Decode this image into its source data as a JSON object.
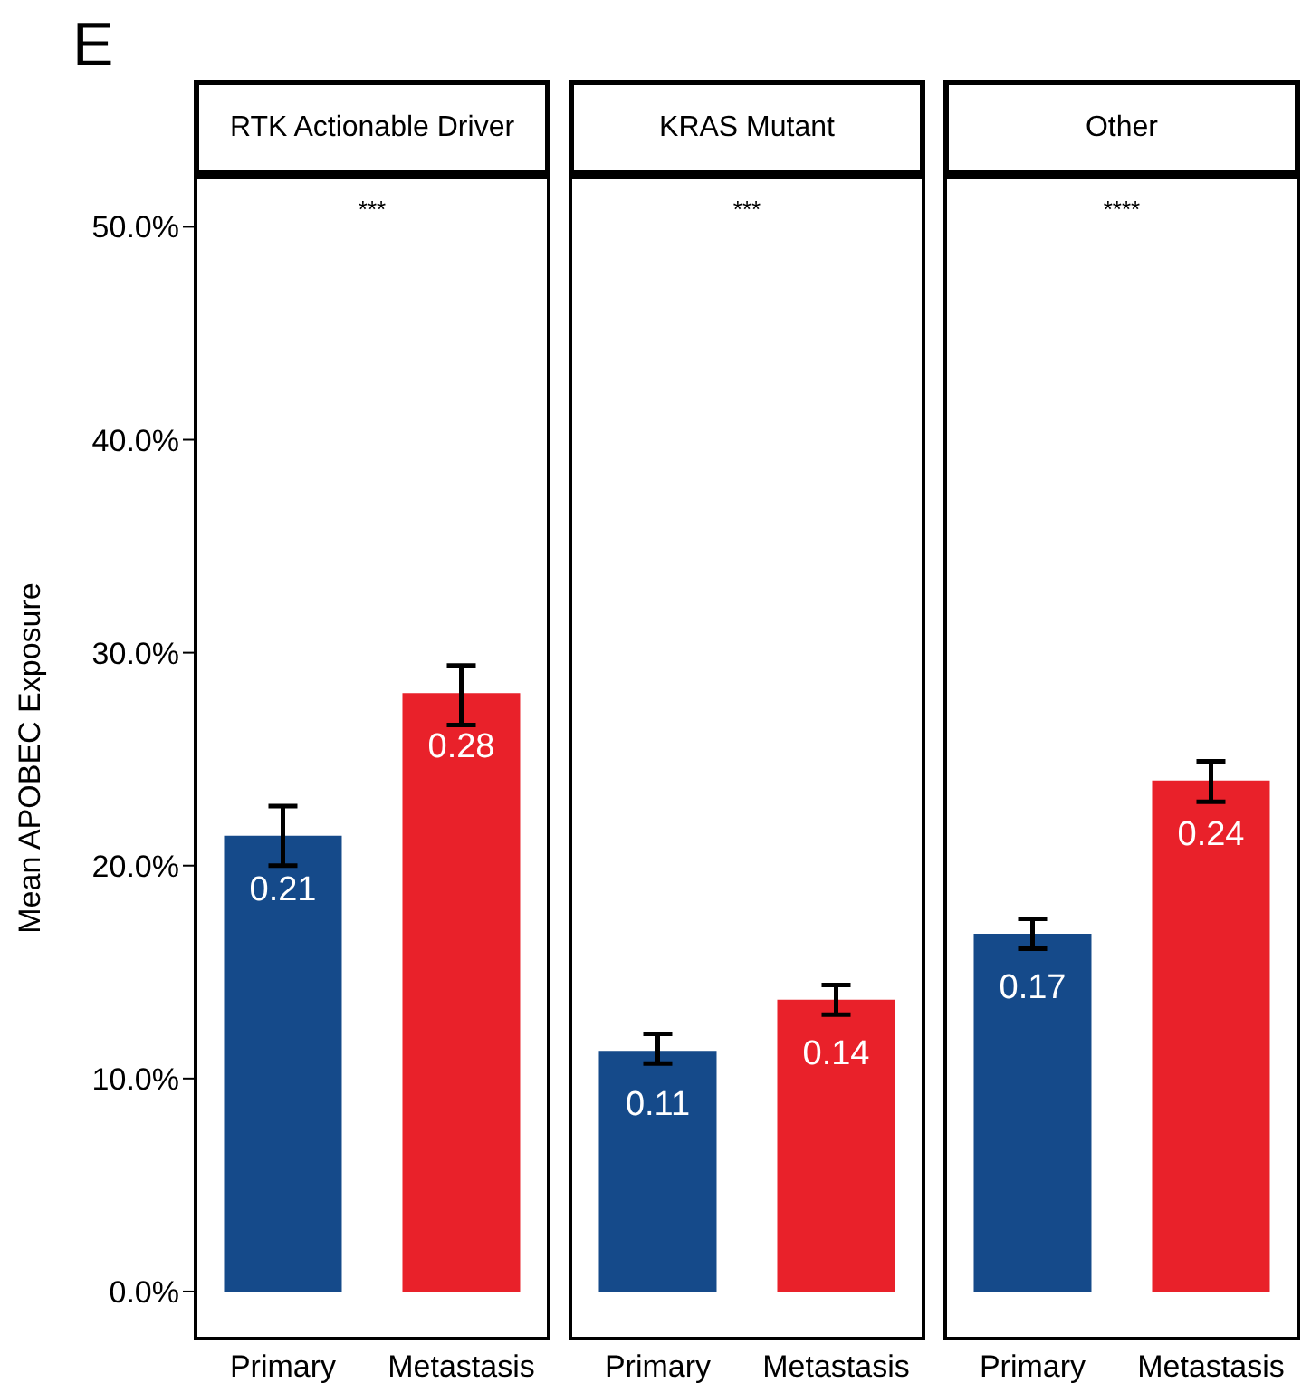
{
  "chart_data": [
    {
      "type": "bar",
      "title": "RTK Actionable Driver",
      "ylabel": "Mean APOBEC Exposure",
      "categories": [
        "Primary",
        "Metastasis"
      ],
      "values": [
        0.214,
        0.281
      ],
      "colors": [
        "#154a8a",
        "#e9212a"
      ],
      "errors": [
        [
          0.2,
          0.228
        ],
        [
          0.266,
          0.294
        ]
      ],
      "value_labels": [
        "0.21",
        "0.28"
      ],
      "annotations": [
        "E",
        "***"
      ],
      "ylim": [
        -0.023,
        0.524
      ],
      "yticks": [
        {
          "value": 0,
          "label": "0.0%"
        },
        {
          "value": 0.1,
          "label": "10.0%"
        },
        {
          "value": 0.2,
          "label": "20.0%"
        },
        {
          "value": 0.3,
          "label": "30.0%"
        },
        {
          "value": 0.4,
          "label": "40.0%"
        },
        {
          "value": 0.5,
          "label": "50.0%"
        }
      ]
    },
    {
      "type": "bar",
      "title": "KRAS Mutant",
      "categories": [
        "Primary",
        "Metastasis"
      ],
      "values": [
        0.113,
        0.137
      ],
      "colors": [
        "#154a8a",
        "#e9212a"
      ],
      "errors": [
        [
          0.107,
          0.121
        ],
        [
          0.13,
          0.144
        ]
      ],
      "value_labels": [
        "0.11",
        "0.14"
      ],
      "annotations": [
        "***"
      ],
      "ylim": [
        -0.023,
        0.524
      ],
      "tick_labels": "x"
    },
    {
      "type": "bar",
      "title": "Other",
      "categories": [
        "Primary",
        "Metastasis"
      ],
      "values": [
        0.168,
        0.24
      ],
      "colors": [
        "#154a8a",
        "#e9212a"
      ],
      "errors": [
        [
          0.161,
          0.175
        ],
        [
          0.23,
          0.249
        ]
      ],
      "value_labels": [
        "0.17",
        "0.24"
      ],
      "annotations": [
        "****"
      ],
      "ylim": [
        -0.023,
        0.524
      ],
      "tick_labels": "x"
    }
  ]
}
